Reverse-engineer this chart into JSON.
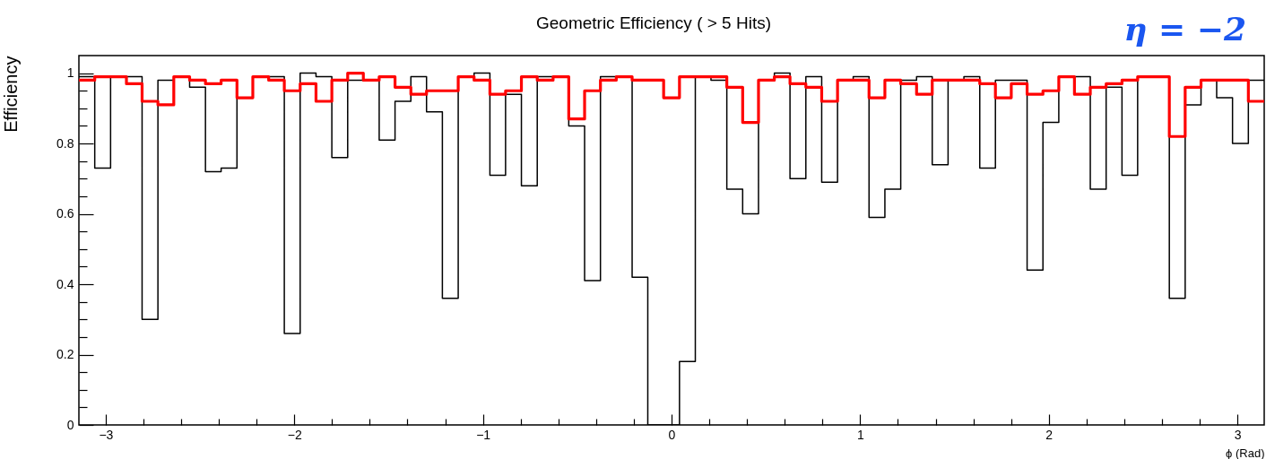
{
  "chart_data": {
    "type": "histogram",
    "title": "Geometric Efficiency ( > 5 Hits)",
    "xlabel": "ϕ (Rad)",
    "ylabel": "Efficiency",
    "annotations": [
      "η = −2"
    ],
    "bins": [
      -3.142,
      -3.058,
      -2.974,
      -2.89,
      -2.807,
      -2.723,
      -2.639,
      -2.555,
      -2.471,
      -2.388,
      -2.304,
      -2.22,
      -2.136,
      -2.053,
      -1.969,
      -1.885,
      -1.801,
      -1.717,
      -1.634,
      -1.55,
      -1.466,
      -1.382,
      -1.299,
      -1.215,
      -1.131,
      -1.047,
      -0.963,
      -0.88,
      -0.796,
      -0.712,
      -0.628,
      -0.545,
      -0.461,
      -0.377,
      -0.293,
      -0.209,
      -0.126,
      -0.042,
      0.042,
      0.126,
      0.209,
      0.293,
      0.377,
      0.461,
      0.545,
      0.628,
      0.712,
      0.796,
      0.88,
      0.963,
      1.047,
      1.131,
      1.215,
      1.299,
      1.382,
      1.466,
      1.55,
      1.634,
      1.717,
      1.801,
      1.885,
      1.969,
      2.053,
      2.136,
      2.22,
      2.304,
      2.388,
      2.471,
      2.555,
      2.639,
      2.723,
      2.807,
      2.89,
      2.974,
      3.058,
      3.142
    ],
    "series": [
      {
        "color": "#000000",
        "values": [
          0.99,
          0.73,
          0.99,
          0.99,
          0.3,
          0.98,
          0.99,
          0.96,
          0.72,
          0.73,
          0.93,
          0.99,
          0.99,
          0.26,
          1.0,
          0.99,
          0.76,
          0.98,
          0.98,
          0.81,
          0.92,
          0.99,
          0.89,
          0.36,
          0.99,
          1.0,
          0.71,
          0.94,
          0.68,
          0.99,
          0.99,
          0.85,
          0.41,
          0.99,
          0.99,
          0.42,
          0,
          0,
          0.18,
          0.99,
          0.98,
          0.67,
          0.6,
          0.98,
          1.0,
          0.7,
          0.99,
          0.69,
          0.98,
          0.99,
          0.59,
          0.67,
          0.98,
          0.99,
          0.74,
          0.98,
          0.99,
          0.73,
          0.98,
          0.98,
          0.44,
          0.86,
          0.99,
          0.99,
          0.67,
          0.96,
          0.71,
          0.99,
          0.99,
          0.36,
          0.91,
          0.98,
          0.93,
          0.8,
          0.98
        ]
      },
      {
        "color": "#ff0000",
        "values": [
          0.98,
          0.99,
          0.99,
          0.97,
          0.92,
          0.91,
          0.99,
          0.98,
          0.97,
          0.98,
          0.93,
          0.99,
          0.98,
          0.95,
          0.97,
          0.92,
          0.98,
          1.0,
          0.98,
          0.99,
          0.96,
          0.94,
          0.95,
          0.95,
          0.99,
          0.98,
          0.94,
          0.95,
          0.99,
          0.98,
          0.99,
          0.87,
          0.95,
          0.98,
          0.99,
          0.98,
          0.98,
          0.93,
          0.99,
          0.99,
          0.99,
          0.96,
          0.86,
          0.98,
          0.99,
          0.97,
          0.96,
          0.92,
          0.98,
          0.98,
          0.93,
          0.98,
          0.97,
          0.94,
          0.98,
          0.98,
          0.98,
          0.97,
          0.93,
          0.97,
          0.94,
          0.95,
          0.99,
          0.94,
          0.96,
          0.97,
          0.98,
          0.99,
          0.99,
          0.82,
          0.96,
          0.98,
          0.98,
          0.98,
          0.92
        ]
      }
    ],
    "xlim": [
      -3.142,
      3.142
    ],
    "ylim": [
      0,
      1.05
    ],
    "xticks": [
      {
        "value": -3,
        "label": "−3"
      },
      {
        "value": -2.8,
        "label": null
      },
      {
        "value": -2.6,
        "label": null
      },
      {
        "value": -2.4,
        "label": null
      },
      {
        "value": -2.2,
        "label": null
      },
      {
        "value": -2,
        "label": "−2"
      },
      {
        "value": -1.8,
        "label": null
      },
      {
        "value": -1.6,
        "label": null
      },
      {
        "value": -1.4,
        "label": null
      },
      {
        "value": -1.2,
        "label": null
      },
      {
        "value": -1,
        "label": "−1"
      },
      {
        "value": -0.8,
        "label": null
      },
      {
        "value": -0.6,
        "label": null
      },
      {
        "value": -0.4,
        "label": null
      },
      {
        "value": -0.2,
        "label": null
      },
      0,
      {
        "value": 0.2,
        "label": null
      },
      {
        "value": 0.4,
        "label": null
      },
      {
        "value": 0.6,
        "label": null
      },
      {
        "value": 0.8,
        "label": null
      },
      1,
      {
        "value": 1.2,
        "label": null
      },
      {
        "value": 1.4,
        "label": null
      },
      {
        "value": 1.6,
        "label": null
      },
      {
        "value": 1.8,
        "label": null
      },
      2,
      {
        "value": 2.2,
        "label": null
      },
      {
        "value": 2.4,
        "label": null
      },
      {
        "value": 2.6,
        "label": null
      },
      {
        "value": 2.8,
        "label": null
      },
      3
    ],
    "yticks": [
      0,
      {
        "value": 0.05,
        "label": null
      },
      {
        "value": 0.1,
        "label": null
      },
      {
        "value": 0.15,
        "label": null
      },
      0.2,
      {
        "value": 0.25,
        "label": null
      },
      {
        "value": 0.3,
        "label": null
      },
      {
        "value": 0.35,
        "label": null
      },
      0.4,
      {
        "value": 0.45,
        "label": null
      },
      {
        "value": 0.5,
        "label": null
      },
      {
        "value": 0.55,
        "label": null
      },
      0.6,
      {
        "value": 0.65,
        "label": null
      },
      {
        "value": 0.7,
        "label": null
      },
      {
        "value": 0.75,
        "label": null
      },
      0.8,
      {
        "value": 0.85,
        "label": null
      },
      {
        "value": 0.9,
        "label": null
      },
      {
        "value": 0.95,
        "label": null
      },
      1
    ]
  }
}
